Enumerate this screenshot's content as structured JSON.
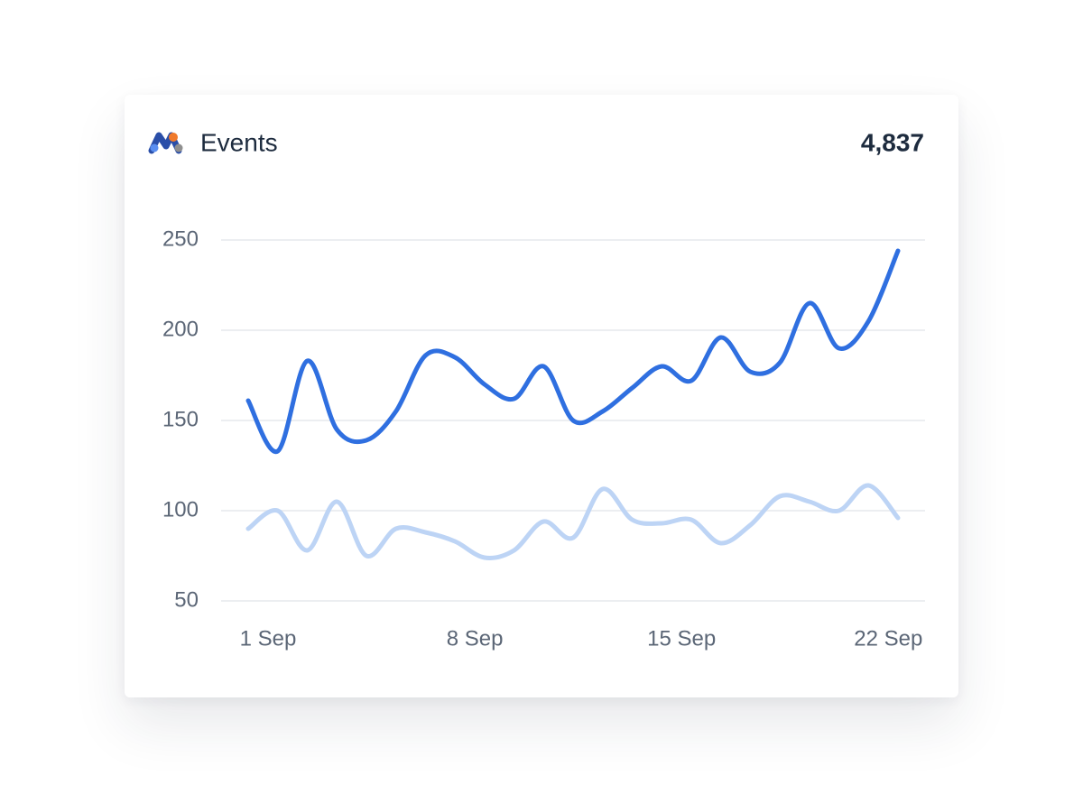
{
  "header": {
    "title": "Events",
    "total": "4,837"
  },
  "chart_data": {
    "type": "line",
    "categories": [
      "1 Sep",
      null,
      null,
      null,
      null,
      null,
      null,
      "8 Sep",
      null,
      null,
      null,
      null,
      null,
      null,
      "15 Sep",
      null,
      null,
      null,
      null,
      null,
      null,
      "22 Sep",
      null
    ],
    "series": [
      {
        "color": "#2f6fe0",
        "values": [
          161,
          133,
          183,
          145,
          139,
          155,
          186,
          185,
          170,
          162,
          180,
          150,
          155,
          168,
          180,
          172,
          196,
          177,
          182,
          215,
          190,
          205,
          244
        ]
      },
      {
        "color": "#bdd4f5",
        "values": [
          90,
          100,
          78,
          105,
          75,
          90,
          88,
          83,
          74,
          78,
          94,
          85,
          112,
          95,
          93,
          95,
          82,
          92,
          108,
          105,
          100,
          114,
          96
        ]
      }
    ],
    "ylim": [
      50,
      250
    ],
    "yticks": [
      50,
      100,
      150,
      200,
      250
    ],
    "grid": true,
    "smooth": true
  }
}
